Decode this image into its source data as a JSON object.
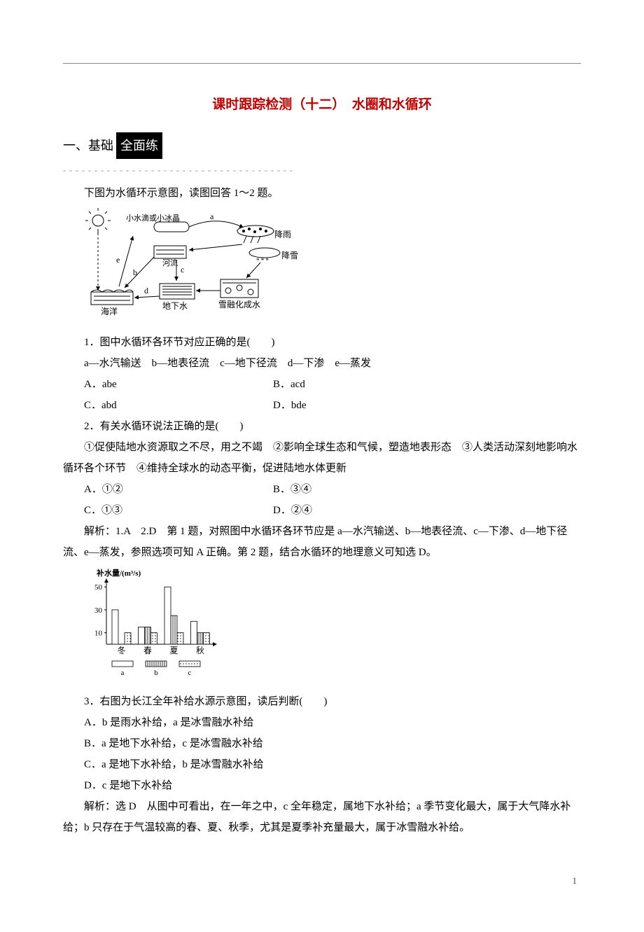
{
  "title": "课时跟踪检测（十二）　水圈和水循环",
  "section1_prefix": "一、基础",
  "section1_box": "全面练",
  "dashed": "- - - - - - - - - - - - - - - - - - - - - - - - - - - - - - - - - - - - -",
  "intro1": "下图为水循环示意图，读图回答 1～2 题。",
  "fig1": {
    "labels": {
      "sun": "☀",
      "droplet": "小水滴或小冰晶",
      "a": "a",
      "rain": "降雨",
      "snow": "降雪",
      "e": "e",
      "b": "b",
      "c": "c",
      "d": "d",
      "river_label": "河流",
      "ocean": "海洋",
      "ground": "地下水",
      "melt": "雪融化成水"
    },
    "colors": {
      "stroke": "#000000",
      "text": "#000000"
    }
  },
  "q1": {
    "stem": "1．图中水循环各环节对应正确的是(　　)",
    "items": "a—水汽输送　b—地表径流　c—地下径流　d—下渗　e—蒸发",
    "A": "A．abe",
    "B": "B．acd",
    "C": "C．abd",
    "D": "D．bde"
  },
  "q2": {
    "stem": "2．有关水循环说法正确的是(　　)",
    "detail": "①促使陆地水资源取之不尽，用之不竭　②影响全球生态和气候，塑造地表形态　③人类活动深刻地影响水循环各个环节　④维持全球水的动态平衡，促进陆地水体更新",
    "A": "A．①②",
    "B": "B．③④",
    "C": "C．①③",
    "D": "D．②④"
  },
  "ana12": "解析：1.A　2.D　第 1 题，对照图中水循环各环节应是 a—水汽输送、b—地表径流、c—下渗、d—地下径流、e—蒸发，参照选项可知 A 正确。第 2 题，结合水循环的地理意义可知选 D。",
  "fig2": {
    "ylabel": "补水量/(m³/s)",
    "yticks": [
      "10",
      "30",
      "50"
    ],
    "ytick_vals": [
      10,
      30,
      50
    ],
    "ylim": [
      0,
      55
    ],
    "seasons": [
      "冬",
      "春",
      "夏",
      "秋"
    ],
    "legend": [
      "a",
      "b",
      "c"
    ],
    "series": {
      "a": [
        30,
        15,
        50,
        20
      ],
      "b": [
        0,
        15,
        25,
        10
      ],
      "c": [
        10,
        10,
        10,
        10
      ]
    },
    "patterns": {
      "a": "blank",
      "b": "vertical",
      "c": "dots"
    },
    "colors": {
      "axis": "#000000",
      "text": "#000000",
      "fill": "#ffffff"
    }
  },
  "q3": {
    "stem": "3．右图为长江全年补给水源示意图，读后判断(　　)",
    "A": "A．b 是雨水补给，a 是冰雪融水补给",
    "B": "B．a 是地下水补给，c 是冰雪融水补给",
    "C": "C．a 是地下水补给，b 是冰雪融水补给",
    "D": "D．c 是地下水补给"
  },
  "ana3": "解析：选 D　从图中可看出，在一年之中，c 全年稳定，属地下水补给；a 季节变化最大，属于大气降水补给；b 只存在于气温较高的春、夏、秋季，尤其是夏季补充量最大，属于冰雪融水补给。",
  "page_num": "1"
}
